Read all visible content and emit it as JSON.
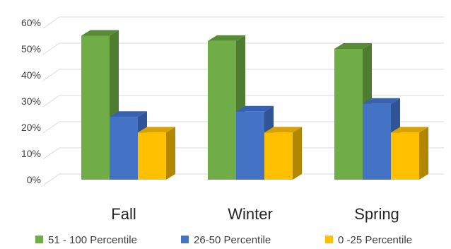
{
  "chart_data": {
    "type": "bar",
    "categories": [
      "Fall",
      "Winter",
      "Spring"
    ],
    "series": [
      {
        "name": "51 - 100 Percentile",
        "values": [
          55,
          53,
          50
        ],
        "color": "#70AD47",
        "side": "#4E7C31",
        "top": "#588C37"
      },
      {
        "name": "26-50 Percentile",
        "values": [
          24,
          26,
          29
        ],
        "color": "#4472C4",
        "side": "#2F5597",
        "top": "#3762B0"
      },
      {
        "name": "0 -25 Percentile",
        "values": [
          18,
          18,
          18
        ],
        "color": "#FFC000",
        "side": "#B38600",
        "top": "#D9A200"
      }
    ],
    "y_ticks": [
      "0%",
      "10%",
      "20%",
      "30%",
      "40%",
      "50%",
      "60%"
    ],
    "ylim": [
      0,
      60
    ],
    "grid": true,
    "legend": "bottom",
    "title": "",
    "xlabel": "",
    "ylabel": ""
  }
}
